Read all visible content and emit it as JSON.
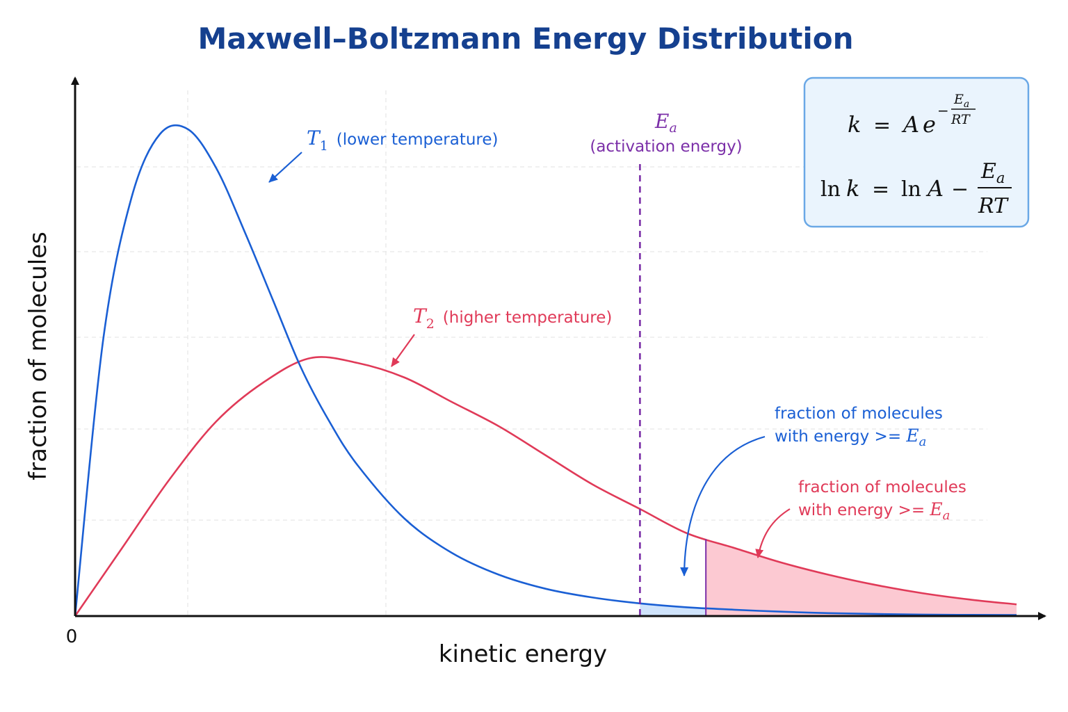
{
  "title": "Maxwell–Boltzmann Energy Distribution",
  "colors": {
    "title": "#15408f",
    "t1": "#1a5fd4",
    "t2": "#e03a58",
    "ea": "#7b2fa8",
    "t1_fill": "#cfe3fb",
    "t2_fill": "#fcc9d2",
    "eq_box_fill": "#eaf4fd",
    "eq_box_stroke": "#6aa8e6"
  },
  "chart_data": {
    "type": "line",
    "title": "Maxwell–Boltzmann Energy Distribution",
    "xlabel": "kinetic energy",
    "ylabel": "fraction of molecules",
    "x_tick_labels": [
      "0"
    ],
    "grid": true,
    "series": [
      {
        "name": "T1 (lower temperature)",
        "x": [
          0,
          0.03,
          0.06,
          0.09,
          0.12,
          0.15,
          0.18,
          0.21,
          0.24,
          0.27,
          0.3,
          0.35,
          0.4,
          0.45,
          0.5,
          0.55,
          0.6,
          0.65,
          0.7,
          0.75,
          0.8,
          0.9,
          1.0
        ],
        "y": [
          0,
          0.57,
          0.86,
          0.99,
          1.0,
          0.92,
          0.79,
          0.65,
          0.51,
          0.4,
          0.31,
          0.2,
          0.13,
          0.085,
          0.056,
          0.038,
          0.026,
          0.018,
          0.013,
          0.009,
          0.006,
          0.003,
          0.002
        ]
      },
      {
        "name": "T2 (higher temperature)",
        "x": [
          0,
          0.05,
          0.1,
          0.15,
          0.2,
          0.25,
          0.3,
          0.35,
          0.4,
          0.45,
          0.5,
          0.55,
          0.6,
          0.65,
          0.7,
          0.75,
          0.8,
          0.85,
          0.9,
          0.95,
          1.0
        ],
        "y": [
          0,
          0.14,
          0.28,
          0.4,
          0.48,
          0.53,
          0.52,
          0.49,
          0.44,
          0.39,
          0.33,
          0.27,
          0.22,
          0.17,
          0.14,
          0.11,
          0.085,
          0.064,
          0.047,
          0.034,
          0.024
        ]
      }
    ],
    "activation_energy_x": 0.6,
    "shaded_regions": [
      {
        "series": "T1 (lower temperature)",
        "from_x": 0.6,
        "to_x": 0.67
      },
      {
        "series": "T2 (higher temperature)",
        "from_x": 0.67,
        "to_x": 1.0
      }
    ]
  },
  "labels": {
    "origin": "0",
    "t1_symbol": "T",
    "t1_sub": "1",
    "t1_text": "(lower temperature)",
    "t2_symbol": "T",
    "t2_sub": "2",
    "t2_text": "(higher temperature)",
    "ea_symbol": "E",
    "ea_sub": "a",
    "ea_text": "(activation energy)",
    "blue_frac_line1": "fraction of molecules",
    "blue_frac_line2": "with energy >= ",
    "red_frac_line1": "fraction of molecules",
    "red_frac_line2": "with energy >= ",
    "frac_e": "E",
    "frac_sub": "a"
  },
  "equations": {
    "eq1_k": "k",
    "eq1_equals": "=",
    "eq1_A": "A",
    "eq1_e": "e",
    "eq1_minus": "−",
    "eq1_num": "E",
    "eq1_num_sub": "a",
    "eq1_den": "RT",
    "eq2_ln1": "ln",
    "eq2_k": "k",
    "eq2_equals": "=",
    "eq2_ln2": "ln",
    "eq2_A": "A",
    "eq2_minus": "−",
    "eq2_num": "E",
    "eq2_num_sub": "a",
    "eq2_den": "RT"
  }
}
